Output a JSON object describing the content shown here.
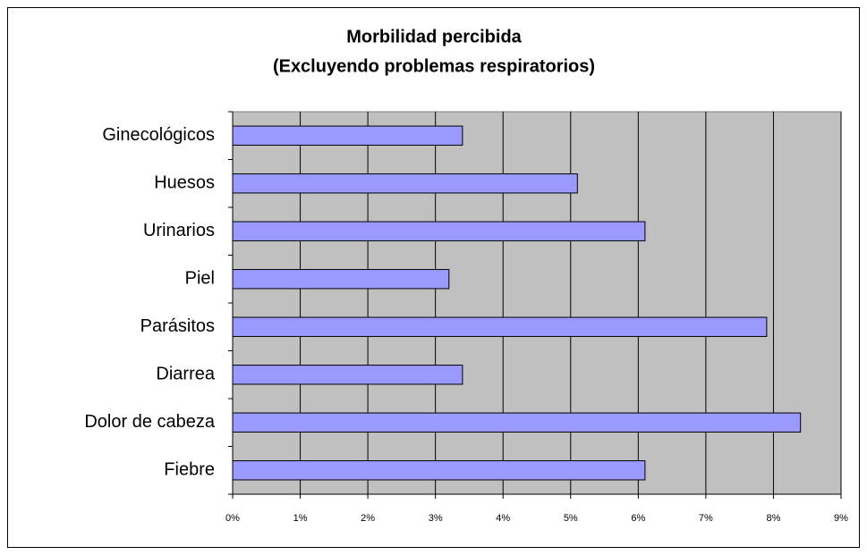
{
  "chart_data": {
    "type": "bar",
    "orientation": "horizontal",
    "title": "Morbilidad percibida",
    "subtitle": "(Excluyendo problemas respiratorios)",
    "categories": [
      "Ginecológicos",
      "Huesos",
      "Urinarios",
      "Piel",
      "Parásitos",
      "Diarrea",
      "Dolor de cabeza",
      "Fiebre"
    ],
    "values": [
      3.4,
      5.1,
      6.1,
      3.2,
      7.9,
      3.4,
      8.4,
      6.1
    ],
    "color": "#9999ff",
    "xlim": [
      0,
      9
    ],
    "xticks": [
      {
        "value": 0,
        "label": "0%"
      },
      {
        "value": 1,
        "label": "1%"
      },
      {
        "value": 2,
        "label": "2%"
      },
      {
        "value": 3,
        "label": "3%"
      },
      {
        "value": 4,
        "label": "4%"
      },
      {
        "value": 5,
        "label": "5%"
      },
      {
        "value": 6,
        "label": "6%"
      },
      {
        "value": 7,
        "label": "7%"
      },
      {
        "value": 8,
        "label": "8%"
      },
      {
        "value": 9,
        "label": "9%"
      }
    ],
    "grid": true
  }
}
